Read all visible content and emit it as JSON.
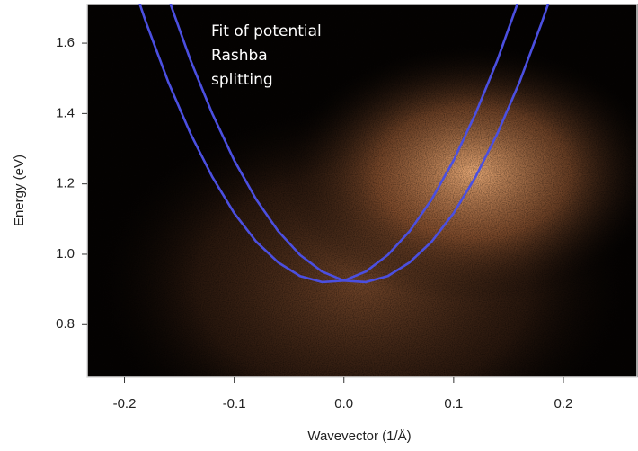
{
  "chart_data": {
    "type": "line",
    "x_label": "Wavevector (1/Å)",
    "y_label": "Energy (eV)",
    "annotation": [
      "Fit of potential",
      "Rashba",
      "splitting"
    ],
    "xlim": [
      -0.234,
      0.268
    ],
    "ylim": [
      0.65,
      1.71
    ],
    "xticks": [
      -0.2,
      -0.1,
      {
        "value": 0,
        "label": "0.0"
      },
      0.1,
      0.2
    ],
    "yticks": [
      0.8,
      {
        "value": 1,
        "label": "1.0"
      },
      1.2,
      1.4,
      1.6
    ],
    "series": [
      {
        "color": "#4b4fe0",
        "x": [
          -0.19,
          -0.18,
          -0.16,
          -0.14,
          -0.12,
          -0.1,
          -0.08,
          -0.06,
          -0.04,
          -0.02,
          0,
          0.02,
          0.04,
          0.06,
          0.08,
          0.1,
          0.12,
          0.14,
          0.16
        ],
        "values": [
          1.747,
          1.656,
          1.489,
          1.344,
          1.22,
          1.117,
          1.036,
          0.977,
          0.938,
          0.921,
          0.925,
          0.951,
          0.998,
          1.066,
          1.156,
          1.267,
          1.4,
          1.553,
          1.728
        ]
      },
      {
        "color": "#4b4fe0",
        "x": [
          -0.16,
          -0.14,
          -0.12,
          -0.1,
          -0.08,
          -0.06,
          -0.04,
          -0.02,
          0,
          0.02,
          0.04,
          0.06,
          0.08,
          0.1,
          0.12,
          0.14,
          0.16,
          0.18,
          0.19
        ],
        "values": [
          1.728,
          1.553,
          1.4,
          1.267,
          1.156,
          1.066,
          0.998,
          0.951,
          0.925,
          0.921,
          0.938,
          0.977,
          1.036,
          1.117,
          1.22,
          1.344,
          1.489,
          1.656,
          1.747
        ]
      }
    ]
  }
}
